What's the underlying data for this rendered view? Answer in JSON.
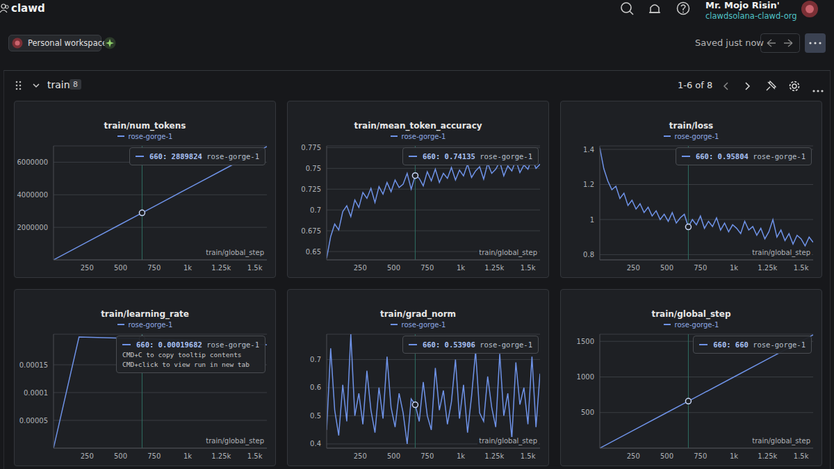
{
  "header": {
    "workspace": "clawd",
    "user": "Mr. Mojo Risin'",
    "org": "clawdsolana-clawd-org",
    "project_label": "Personal workspace",
    "status": "Saved just now"
  },
  "section": {
    "title": "train",
    "count": 8,
    "pagination": "1-6 of 8"
  },
  "chart_data": [
    {
      "type": "line",
      "title": "train/num_tokens",
      "x_label": "train/global_step",
      "grid": true,
      "x": [
        0,
        250,
        500,
        660,
        750,
        1000,
        1250,
        1500,
        1590
      ],
      "series": [
        {
          "name": "rose-gorge-1",
          "color": "#6f93e8",
          "values": [
            0,
            1094500,
            2189000,
            2889824,
            3283500,
            4378000,
            5472500,
            6567000,
            6961000
          ]
        }
      ],
      "xlim": [
        0,
        1590
      ],
      "xticks": [
        250,
        500,
        750,
        {
          "value": 1000,
          "label": "1k"
        },
        {
          "value": 1250,
          "label": "1.25k"
        },
        {
          "value": 1500,
          "label": "1.5k"
        }
      ],
      "ylim": [
        0,
        7000000
      ],
      "yticks": [
        2000000,
        4000000,
        6000000
      ],
      "tooltip": {
        "x": 660,
        "label": "660: 2889824"
      }
    },
    {
      "type": "line",
      "title": "train/mean_token_accuracy",
      "x_label": "train/global_step",
      "grid": true,
      "x": [
        0,
        30,
        60,
        90,
        120,
        150,
        180,
        210,
        240,
        270,
        300,
        330,
        360,
        390,
        420,
        450,
        480,
        510,
        540,
        570,
        600,
        630,
        660,
        690,
        720,
        750,
        780,
        810,
        840,
        870,
        900,
        930,
        960,
        990,
        1020,
        1050,
        1080,
        1110,
        1140,
        1170,
        1200,
        1230,
        1260,
        1290,
        1320,
        1350,
        1380,
        1410,
        1440,
        1470,
        1500,
        1530,
        1560,
        1590
      ],
      "series": [
        {
          "name": "rose-gorge-1",
          "color": "#6f93e8",
          "values": [
            0.642,
            0.668,
            0.683,
            0.676,
            0.698,
            0.705,
            0.692,
            0.712,
            0.703,
            0.721,
            0.714,
            0.726,
            0.709,
            0.728,
            0.719,
            0.733,
            0.722,
            0.736,
            0.727,
            0.731,
            0.744,
            0.725,
            0.74135,
            0.738,
            0.729,
            0.746,
            0.735,
            0.749,
            0.733,
            0.744,
            0.738,
            0.751,
            0.736,
            0.748,
            0.741,
            0.755,
            0.739,
            0.747,
            0.752,
            0.737,
            0.756,
            0.744,
            0.749,
            0.758,
            0.741,
            0.753,
            0.747,
            0.76,
            0.745,
            0.754,
            0.749,
            0.762,
            0.75,
            0.755
          ]
        }
      ],
      "xlim": [
        0,
        1590
      ],
      "xticks": [
        250,
        500,
        750,
        {
          "value": 1000,
          "label": "1k"
        },
        {
          "value": 1250,
          "label": "1.25k"
        },
        {
          "value": 1500,
          "label": "1.5k"
        }
      ],
      "ylim": [
        0.64,
        0.777
      ],
      "yticks": [
        0.65,
        0.675,
        0.7,
        0.725,
        0.75,
        0.775
      ],
      "tooltip": {
        "x": 660,
        "label": "660: 0.74135"
      }
    },
    {
      "type": "line",
      "title": "train/loss",
      "x_label": "train/global_step",
      "grid": true,
      "x": [
        0,
        30,
        60,
        90,
        120,
        150,
        180,
        210,
        240,
        270,
        300,
        330,
        360,
        390,
        420,
        450,
        480,
        510,
        540,
        570,
        600,
        630,
        660,
        690,
        720,
        750,
        780,
        810,
        840,
        870,
        900,
        930,
        960,
        990,
        1020,
        1050,
        1080,
        1110,
        1140,
        1170,
        1200,
        1230,
        1260,
        1290,
        1320,
        1350,
        1380,
        1410,
        1440,
        1470,
        1500,
        1530,
        1560,
        1590
      ],
      "series": [
        {
          "name": "rose-gorge-1",
          "color": "#6f93e8",
          "values": [
            1.41,
            1.29,
            1.22,
            1.17,
            1.19,
            1.12,
            1.15,
            1.08,
            1.11,
            1.06,
            1.09,
            1.04,
            1.07,
            1.02,
            1.05,
            1.0,
            1.03,
            0.99,
            1.04,
            0.98,
            1.01,
            1.03,
            0.95804,
            1.0,
            0.97,
            1.02,
            0.95,
            0.99,
            0.96,
            1.01,
            0.94,
            0.98,
            0.93,
            0.97,
            0.95,
            0.92,
            0.99,
            0.94,
            0.96,
            0.91,
            0.95,
            0.89,
            0.93,
            1.0,
            0.9,
            0.94,
            0.88,
            0.92,
            0.86,
            0.91,
            0.89,
            0.85,
            0.9,
            0.87
          ]
        }
      ],
      "xlim": [
        0,
        1590
      ],
      "xticks": [
        250,
        500,
        750,
        {
          "value": 1000,
          "label": "1k"
        },
        {
          "value": 1250,
          "label": "1.25k"
        },
        {
          "value": 1500,
          "label": "1.5k"
        }
      ],
      "ylim": [
        0.77,
        1.42
      ],
      "yticks": [
        0.8,
        1,
        1.2,
        1.4
      ],
      "tooltip": {
        "x": 660,
        "label": "660: 0.95804"
      }
    },
    {
      "type": "line",
      "title": "train/learning_rate",
      "x_label": "train/global_step",
      "grid": true,
      "x": [
        0,
        190,
        660,
        1000,
        1250,
        1590
      ],
      "series": [
        {
          "name": "rose-gorge-1",
          "color": "#6f93e8",
          "values": [
            0,
            0.0002,
            0.00019682,
            0.000194,
            0.000191,
            0.000186
          ]
        }
      ],
      "xlim": [
        0,
        1590
      ],
      "xticks": [
        250,
        500,
        750,
        {
          "value": 1000,
          "label": "1k"
        },
        {
          "value": 1250,
          "label": "1.25k"
        },
        {
          "value": 1500,
          "label": "1.5k"
        }
      ],
      "ylim": [
        0,
        0.000205
      ],
      "yticks": [
        {
          "value": 5e-05,
          "label": "0.00005"
        },
        {
          "value": 0.0001,
          "label": "0.0001"
        },
        {
          "value": 0.00015,
          "label": "0.00015"
        }
      ],
      "tooltip": {
        "x": 660,
        "label": "660: 0.00019682",
        "hints": [
          "CMD+C to copy tooltip contents",
          "CMD+click to view run in new tab"
        ]
      }
    },
    {
      "type": "line",
      "title": "train/grad_norm",
      "x_label": "train/global_step",
      "grid": true,
      "x": [
        0,
        30,
        60,
        90,
        120,
        150,
        180,
        210,
        240,
        270,
        300,
        330,
        360,
        390,
        420,
        450,
        480,
        510,
        540,
        570,
        600,
        630,
        660,
        690,
        720,
        750,
        780,
        810,
        840,
        870,
        900,
        930,
        960,
        990,
        1020,
        1050,
        1080,
        1110,
        1140,
        1170,
        1200,
        1230,
        1260,
        1290,
        1320,
        1350,
        1380,
        1410,
        1440,
        1470,
        1500,
        1530,
        1560,
        1590
      ],
      "series": [
        {
          "name": "rose-gorge-1",
          "color": "#6f93e8",
          "values": [
            0.45,
            0.74,
            0.52,
            0.43,
            0.61,
            0.48,
            0.79,
            0.5,
            0.58,
            0.47,
            0.66,
            0.52,
            0.44,
            0.6,
            0.49,
            0.71,
            0.53,
            0.46,
            0.58,
            0.51,
            0.4,
            0.56,
            0.53906,
            0.48,
            0.62,
            0.5,
            0.45,
            0.67,
            0.52,
            0.59,
            0.47,
            0.55,
            0.7,
            0.49,
            0.61,
            0.44,
            0.57,
            0.73,
            0.51,
            0.48,
            0.64,
            0.53,
            0.46,
            0.72,
            0.5,
            0.58,
            0.42,
            0.69,
            0.54,
            0.6,
            0.47,
            0.71,
            0.46,
            0.65
          ]
        }
      ],
      "xlim": [
        0,
        1590
      ],
      "xticks": [
        250,
        500,
        750,
        {
          "value": 1000,
          "label": "1k"
        },
        {
          "value": 1250,
          "label": "1.25k"
        },
        {
          "value": 1500,
          "label": "1.5k"
        }
      ],
      "ylim": [
        0.385,
        0.79
      ],
      "yticks": [
        0.4,
        0.5,
        0.6,
        0.7
      ],
      "tooltip": {
        "x": 660,
        "label": "660: 0.53906"
      }
    },
    {
      "type": "line",
      "title": "train/global_step",
      "x_label": "train/global_step",
      "grid": true,
      "x": [
        0,
        250,
        500,
        660,
        750,
        1000,
        1250,
        1500,
        1590
      ],
      "series": [
        {
          "name": "rose-gorge-1",
          "color": "#6f93e8",
          "values": [
            0,
            250,
            500,
            660,
            750,
            1000,
            1250,
            1500,
            1590
          ]
        }
      ],
      "xlim": [
        0,
        1590
      ],
      "xticks": [
        250,
        500,
        750,
        {
          "value": 1000,
          "label": "1k"
        },
        {
          "value": 1250,
          "label": "1.25k"
        },
        {
          "value": 1500,
          "label": "1.5k"
        }
      ],
      "ylim": [
        0,
        1600
      ],
      "yticks": [
        500,
        1000,
        1500
      ],
      "tooltip": {
        "x": 660,
        "label": "660: 660"
      }
    }
  ]
}
